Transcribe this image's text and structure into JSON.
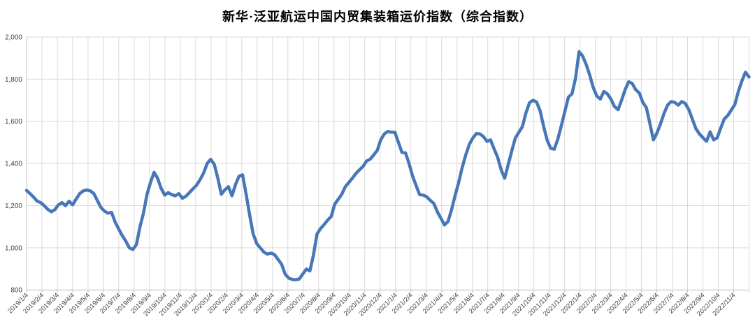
{
  "chart_data": {
    "type": "line",
    "title": "新华·泛亚航运中国内贸集装箱运价指数（综合指数）",
    "legend": "none",
    "grid": "on",
    "x_frequency": "weekly",
    "x_start": "2019/1/4",
    "x_end": "2022/12/2",
    "xlabel": "",
    "ylabel": "",
    "ylim": [
      800,
      2000
    ],
    "y_tick_step": 200,
    "y_tick_labels": [
      "800",
      "1,000",
      "1,200",
      "1,400",
      "1,600",
      "1,800",
      "2,000"
    ],
    "x_tick_labels": [
      "2019/1/4",
      "2019/2/4",
      "2019/3/4",
      "2019/4/4",
      "2019/5/4",
      "2019/6/4",
      "2019/7/4",
      "2019/8/4",
      "2019/9/4",
      "2019/10/4",
      "2019/11/4",
      "2019/12/4",
      "2020/1/4",
      "2020/2/4",
      "2020/3/4",
      "2020/4/4",
      "2020/5/4",
      "2020/6/4",
      "2020/7/4",
      "2020/8/4",
      "2020/9/4",
      "2020/10/4",
      "2020/11/4",
      "2020/12/4",
      "2021/1/4",
      "2021/2/4",
      "2021/3/4",
      "2021/4/4",
      "2021/5/4",
      "2021/6/4",
      "2021/7/4",
      "2021/8/4",
      "2021/9/4",
      "2021/10/4",
      "2021/11/4",
      "2021/12/4",
      "2022/1/4",
      "2022/2/4",
      "2022/3/4",
      "2022/4/4",
      "2022/5/4",
      "2022/6/4",
      "2022/7/4",
      "2022/8/4",
      "2022/9/4",
      "2022/10/4",
      "2022/11/4"
    ],
    "series": [
      {
        "name": "综合指数",
        "values": [
          1272,
          1257,
          1240,
          1221,
          1214,
          1200,
          1182,
          1171,
          1181,
          1204,
          1214,
          1200,
          1221,
          1204,
          1231,
          1257,
          1270,
          1274,
          1270,
          1257,
          1224,
          1191,
          1174,
          1164,
          1168,
          1122,
          1090,
          1058,
          1032,
          1000,
          992,
          1015,
          1098,
          1164,
          1254,
          1310,
          1358,
          1330,
          1282,
          1250,
          1262,
          1252,
          1247,
          1257,
          1235,
          1245,
          1262,
          1280,
          1297,
          1323,
          1355,
          1400,
          1420,
          1396,
          1330,
          1254,
          1275,
          1290,
          1247,
          1300,
          1340,
          1346,
          1254,
          1154,
          1065,
          1020,
          999,
          980,
          970,
          975,
          968,
          945,
          922,
          876,
          856,
          850,
          848,
          852,
          876,
          899,
          890,
          966,
          1065,
          1091,
          1110,
          1131,
          1148,
          1207,
          1230,
          1254,
          1290,
          1310,
          1330,
          1353,
          1370,
          1386,
          1412,
          1420,
          1440,
          1462,
          1512,
          1540,
          1552,
          1548,
          1548,
          1500,
          1452,
          1450,
          1400,
          1340,
          1295,
          1252,
          1250,
          1242,
          1225,
          1210,
          1170,
          1140,
          1108,
          1125,
          1180,
          1248,
          1310,
          1380,
          1440,
          1490,
          1520,
          1542,
          1540,
          1528,
          1505,
          1512,
          1470,
          1430,
          1370,
          1330,
          1395,
          1460,
          1520,
          1548,
          1575,
          1640,
          1688,
          1700,
          1692,
          1650,
          1575,
          1510,
          1472,
          1468,
          1515,
          1580,
          1648,
          1715,
          1730,
          1805,
          1930,
          1910,
          1870,
          1820,
          1760,
          1720,
          1705,
          1742,
          1730,
          1705,
          1670,
          1655,
          1700,
          1750,
          1788,
          1780,
          1750,
          1735,
          1690,
          1665,
          1590,
          1512,
          1545,
          1588,
          1638,
          1677,
          1694,
          1690,
          1677,
          1694,
          1685,
          1655,
          1610,
          1565,
          1540,
          1522,
          1505,
          1550,
          1512,
          1522,
          1568,
          1611,
          1628,
          1654,
          1680,
          1743,
          1793,
          1833,
          1810
        ]
      }
    ],
    "colors": {
      "line": "#4877B8",
      "gridline": "#D9D9D9",
      "axis": "#BFBFBF",
      "tick_label": "#404040",
      "title": "#000000",
      "background": "#FFFFFF"
    }
  }
}
